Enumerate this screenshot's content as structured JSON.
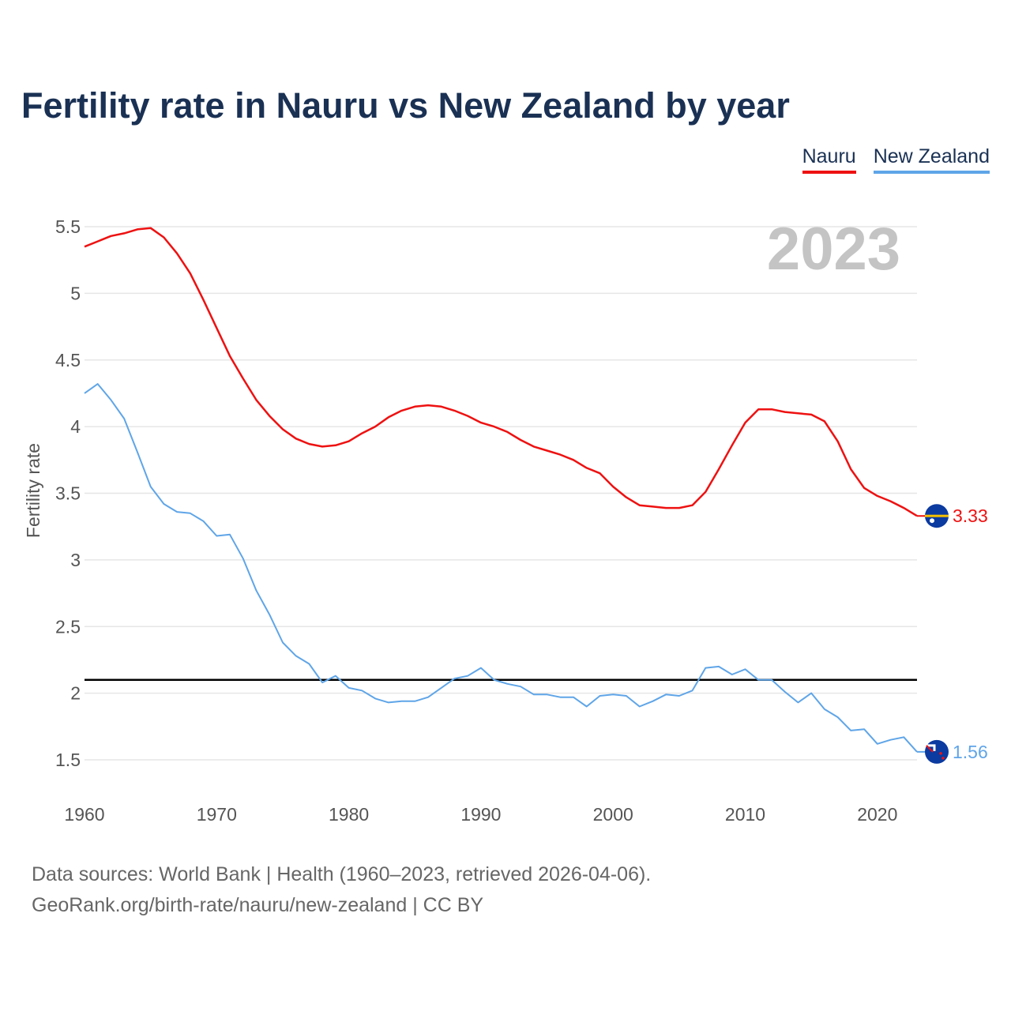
{
  "title": "Fertility rate in Nauru vs New Zealand by year",
  "legend": [
    {
      "label": "Nauru",
      "color": "#ee1111"
    },
    {
      "label": "New Zealand",
      "color": "#5fa5e8"
    }
  ],
  "source": {
    "line1": "Data sources: World Bank | Health (1960–2023, retrieved 2026-04-06).",
    "line2": "GeoRank.org/birth-rate/nauru/new-zealand | CC BY"
  },
  "chart_data": {
    "type": "line",
    "title": "Fertility rate in Nauru vs New Zealand by year",
    "ylabel": "Fertility rate",
    "xlabel": "",
    "year_watermark": "2023",
    "xlim": [
      1960,
      2023
    ],
    "ylim": [
      1.5,
      5.5
    ],
    "x_ticks": [
      "1960",
      "1970",
      "1980",
      "1990",
      "2000",
      "2010",
      "2020"
    ],
    "y_ticks": [
      "1.5",
      "2",
      "2.5",
      "3",
      "3.5",
      "4",
      "4.5",
      "5",
      "5.5"
    ],
    "reference_line": 2.1,
    "x": [
      1960,
      1961,
      1962,
      1963,
      1964,
      1965,
      1966,
      1967,
      1968,
      1969,
      1970,
      1971,
      1972,
      1973,
      1974,
      1975,
      1976,
      1977,
      1978,
      1979,
      1980,
      1981,
      1982,
      1983,
      1984,
      1985,
      1986,
      1987,
      1988,
      1989,
      1990,
      1991,
      1992,
      1993,
      1994,
      1995,
      1996,
      1997,
      1998,
      1999,
      2000,
      2001,
      2002,
      2003,
      2004,
      2005,
      2006,
      2007,
      2008,
      2009,
      2010,
      2011,
      2012,
      2013,
      2014,
      2015,
      2016,
      2017,
      2018,
      2019,
      2020,
      2021,
      2022,
      2023
    ],
    "series": [
      {
        "name": "Nauru",
        "color": "#ee1111",
        "end_label": "3.33",
        "values": [
          5.35,
          5.39,
          5.43,
          5.45,
          5.48,
          5.49,
          5.42,
          5.3,
          5.15,
          4.95,
          4.74,
          4.53,
          4.36,
          4.2,
          4.08,
          3.98,
          3.91,
          3.87,
          3.85,
          3.86,
          3.89,
          3.95,
          4.0,
          4.07,
          4.12,
          4.15,
          4.16,
          4.15,
          4.12,
          4.08,
          4.03,
          4.0,
          3.96,
          3.9,
          3.85,
          3.82,
          3.79,
          3.75,
          3.69,
          3.65,
          3.55,
          3.47,
          3.41,
          3.4,
          3.39,
          3.39,
          3.41,
          3.51,
          3.68,
          3.86,
          4.03,
          4.13,
          4.13,
          4.11,
          4.1,
          4.09,
          4.04,
          3.89,
          3.68,
          3.54,
          3.48,
          3.44,
          3.39,
          3.33
        ]
      },
      {
        "name": "New Zealand",
        "color": "#5fa5e8",
        "end_label": "1.56",
        "values": [
          4.25,
          4.32,
          4.2,
          4.06,
          3.81,
          3.55,
          3.42,
          3.36,
          3.35,
          3.29,
          3.18,
          3.19,
          3.01,
          2.77,
          2.59,
          2.38,
          2.28,
          2.22,
          2.08,
          2.13,
          2.04,
          2.02,
          1.96,
          1.93,
          1.94,
          1.94,
          1.97,
          2.04,
          2.11,
          2.13,
          2.19,
          2.1,
          2.07,
          2.05,
          1.99,
          1.99,
          1.97,
          1.97,
          1.9,
          1.98,
          1.99,
          1.98,
          1.9,
          1.94,
          1.99,
          1.98,
          2.02,
          2.19,
          2.2,
          2.14,
          2.18,
          2.1,
          2.1,
          2.01,
          1.93,
          2.0,
          1.88,
          1.82,
          1.72,
          1.73,
          1.62,
          1.65,
          1.67,
          1.56
        ]
      }
    ]
  }
}
